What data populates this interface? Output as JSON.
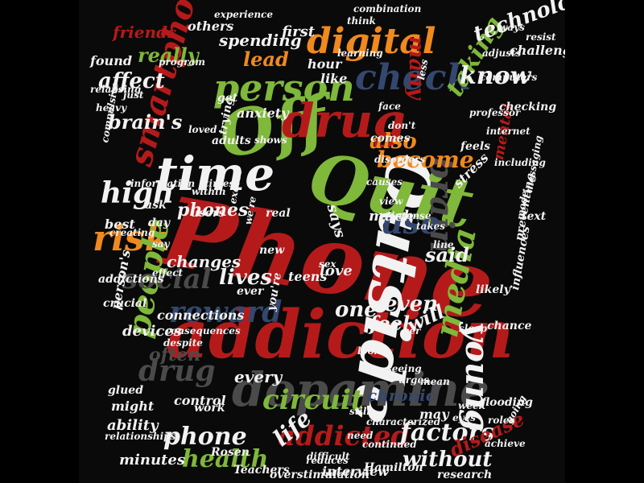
{
  "palette": {
    "red": "#b51a1a",
    "green": "#7fb83a",
    "white": "#f2f2f2",
    "grey": "#4a4a4a",
    "navy": "#34476e",
    "orange": "#f0891e",
    "dark": "#2a2a2a"
  },
  "words": [
    {
      "id": "phone-big",
      "text": "Phone",
      "color": "red"
    },
    {
      "id": "addiction",
      "text": "addiction",
      "color": "red"
    },
    {
      "id": "outside",
      "text": "Outside",
      "color": "white"
    },
    {
      "id": "quit",
      "text": "Quit",
      "color": "green"
    },
    {
      "id": "off",
      "text": "Off",
      "color": "green"
    },
    {
      "id": "dopamine",
      "text": "dopamine",
      "color": "grey"
    },
    {
      "id": "time",
      "text": "time",
      "color": "white"
    },
    {
      "id": "drug-top",
      "text": "drug",
      "color": "red"
    },
    {
      "id": "person",
      "text": "person",
      "color": "green"
    },
    {
      "id": "digital",
      "text": "digital",
      "color": "orange"
    },
    {
      "id": "check",
      "text": "check",
      "color": "navy"
    },
    {
      "id": "smartphone",
      "text": "smartphone",
      "color": "red"
    },
    {
      "id": "risk",
      "text": "risk",
      "color": "orange"
    },
    {
      "id": "high",
      "text": "high",
      "color": "white"
    },
    {
      "id": "people",
      "text": "people",
      "color": "green"
    },
    {
      "id": "young",
      "text": "young",
      "color": "white"
    },
    {
      "id": "media",
      "text": "media",
      "color": "green"
    },
    {
      "id": "brain",
      "text": "brain",
      "color": "grey"
    },
    {
      "id": "use",
      "text": "use",
      "color": "navy"
    },
    {
      "id": "reward",
      "text": "reward",
      "color": "navy"
    },
    {
      "id": "social",
      "text": "social",
      "color": "grey"
    },
    {
      "id": "circuit",
      "text": "circuit",
      "color": "green"
    },
    {
      "id": "addicted",
      "text": "addicted",
      "color": "red"
    },
    {
      "id": "factors",
      "text": "factors",
      "color": "white"
    },
    {
      "id": "phone-small",
      "text": "phone",
      "color": "white"
    },
    {
      "id": "health",
      "text": "health",
      "color": "green"
    },
    {
      "id": "lives",
      "text": "lives",
      "color": "white"
    },
    {
      "id": "one",
      "text": "one",
      "color": "white"
    },
    {
      "id": "even",
      "text": "even",
      "color": "white"
    },
    {
      "id": "feel",
      "text": "feel",
      "color": "white"
    },
    {
      "id": "will",
      "text": "will",
      "color": "white"
    },
    {
      "id": "also",
      "text": "also",
      "color": "orange"
    },
    {
      "id": "become",
      "text": "become",
      "color": "orange"
    },
    {
      "id": "taking",
      "text": "taking",
      "color": "green"
    },
    {
      "id": "know",
      "text": "know",
      "color": "white"
    },
    {
      "id": "technology",
      "text": "technology",
      "color": "white"
    },
    {
      "id": "many",
      "text": "many",
      "color": "red"
    },
    {
      "id": "lead",
      "text": "lead",
      "color": "orange"
    },
    {
      "id": "affect",
      "text": "affect",
      "color": "white"
    },
    {
      "id": "really",
      "text": "really",
      "color": "green"
    },
    {
      "id": "phones",
      "text": "phones",
      "color": "white"
    },
    {
      "id": "said",
      "text": "said",
      "color": "white"
    },
    {
      "id": "disease",
      "text": "disease",
      "color": "red"
    },
    {
      "id": "without",
      "text": "without",
      "color": "white"
    },
    {
      "id": "minutes",
      "text": "minutes",
      "color": "white"
    },
    {
      "id": "ability",
      "text": "ability",
      "color": "white"
    },
    {
      "id": "devices",
      "text": "devices",
      "color": "white"
    },
    {
      "id": "every",
      "text": "every",
      "color": "white"
    },
    {
      "id": "drug-mid",
      "text": "drug",
      "color": "grey"
    },
    {
      "id": "often",
      "text": "often",
      "color": "grey"
    },
    {
      "id": "changes",
      "text": "changes",
      "color": "white"
    },
    {
      "id": "love",
      "text": "love",
      "color": "white"
    },
    {
      "id": "chronic",
      "text": "chronic",
      "color": "navy"
    },
    {
      "id": "life",
      "text": "life",
      "color": "white"
    },
    {
      "id": "much",
      "text": "much",
      "color": "white"
    },
    {
      "id": "stress",
      "text": "stress",
      "color": "white"
    },
    {
      "id": "mental",
      "text": "mental",
      "color": "red"
    },
    {
      "id": "friends",
      "text": "friends",
      "color": "red"
    },
    {
      "id": "spending",
      "text": "spending",
      "color": "white"
    },
    {
      "id": "first",
      "text": "first",
      "color": "white"
    },
    {
      "id": "challenge",
      "text": "challenge",
      "color": "white"
    },
    {
      "id": "found",
      "text": "found",
      "color": "white"
    },
    {
      "id": "others",
      "text": "others",
      "color": "white"
    },
    {
      "id": "hour",
      "text": "hour",
      "color": "white"
    },
    {
      "id": "like",
      "text": "like",
      "color": "white"
    },
    {
      "id": "anxiety",
      "text": "anxiety",
      "color": "white"
    },
    {
      "id": "users",
      "text": "users",
      "color": "white"
    },
    {
      "id": "best",
      "text": "best",
      "color": "white"
    },
    {
      "id": "day",
      "text": "day",
      "color": "white"
    },
    {
      "id": "ask",
      "text": "ask",
      "color": "white"
    },
    {
      "id": "adults",
      "text": "adults",
      "color": "white"
    },
    {
      "id": "teens",
      "text": "teens",
      "color": "white"
    },
    {
      "id": "connections",
      "text": "connections",
      "color": "white"
    },
    {
      "id": "crucial",
      "text": "crucial",
      "color": "white"
    },
    {
      "id": "addictions",
      "text": "addictions",
      "color": "white"
    },
    {
      "id": "consequences",
      "text": "consequences",
      "color": "white"
    },
    {
      "id": "despite",
      "text": "despite",
      "color": "white"
    },
    {
      "id": "control",
      "text": "control",
      "color": "white"
    },
    {
      "id": "work",
      "text": "work",
      "color": "white"
    },
    {
      "id": "might",
      "text": "might",
      "color": "white"
    },
    {
      "id": "glued",
      "text": "glued",
      "color": "white"
    },
    {
      "id": "relationships",
      "text": "relationships",
      "color": "white"
    },
    {
      "id": "interview",
      "text": "interview",
      "color": "white"
    },
    {
      "id": "may",
      "text": "may",
      "color": "white"
    },
    {
      "id": "chance",
      "text": "chance",
      "color": "white"
    },
    {
      "id": "influences",
      "text": "influences",
      "color": "white"
    },
    {
      "id": "preventing",
      "text": "preventing",
      "color": "white"
    },
    {
      "id": "likely",
      "text": "likely",
      "color": "white"
    },
    {
      "id": "says",
      "text": "says",
      "color": "white"
    },
    {
      "id": "real",
      "text": "real",
      "color": "white"
    },
    {
      "id": "ever",
      "text": "ever",
      "color": "white"
    },
    {
      "id": "comes",
      "text": "comes",
      "color": "white"
    },
    {
      "id": "disorders",
      "text": "disorders",
      "color": "white"
    },
    {
      "id": "causes",
      "text": "causes",
      "color": "white"
    },
    {
      "id": "intense",
      "text": "intense",
      "color": "white"
    },
    {
      "id": "takes",
      "text": "takes",
      "color": "white"
    },
    {
      "id": "line",
      "text": "line",
      "color": "white"
    },
    {
      "id": "text",
      "text": "text",
      "color": "white"
    },
    {
      "id": "messaging",
      "text": "messaging",
      "color": "white"
    },
    {
      "id": "including",
      "text": "including",
      "color": "white"
    },
    {
      "id": "internet",
      "text": "internet",
      "color": "white"
    },
    {
      "id": "feels",
      "text": "feels",
      "color": "white"
    },
    {
      "id": "computers",
      "text": "computers",
      "color": "white"
    },
    {
      "id": "checking",
      "text": "checking",
      "color": "white"
    },
    {
      "id": "professor",
      "text": "professor",
      "color": "white"
    },
    {
      "id": "Rosen",
      "text": "Rosen",
      "color": "white"
    },
    {
      "id": "Teachers",
      "text": "Teachers",
      "color": "white"
    },
    {
      "id": "overstimulation",
      "text": "overstimulation",
      "color": "white"
    },
    {
      "id": "Hamilton",
      "text": "Hamilton",
      "color": "white"
    },
    {
      "id": "research",
      "text": "research",
      "color": "white"
    },
    {
      "id": "achieve",
      "text": "achieve",
      "color": "white"
    },
    {
      "id": "roles",
      "text": "roles",
      "color": "white"
    },
    {
      "id": "flooding",
      "text": "flooding",
      "color": "white"
    },
    {
      "id": "week",
      "text": "week",
      "color": "white"
    },
    {
      "id": "going",
      "text": "going",
      "color": "white"
    },
    {
      "id": "mean",
      "text": "mean",
      "color": "white"
    },
    {
      "id": "urges",
      "text": "urges",
      "color": "white"
    },
    {
      "id": "seeing",
      "text": "seeing",
      "color": "white"
    },
    {
      "id": "look",
      "text": "look",
      "color": "white"
    },
    {
      "id": "sleep",
      "text": "sleep",
      "color": "white"
    },
    {
      "id": "per",
      "text": "per",
      "color": "white"
    },
    {
      "id": "eyes",
      "text": "eyes",
      "color": "white"
    },
    {
      "id": "still",
      "text": "still",
      "color": "white"
    },
    {
      "id": "characterized",
      "text": "characterized",
      "color": "white"
    },
    {
      "id": "need",
      "text": "need",
      "color": "white"
    },
    {
      "id": "continued",
      "text": "continued",
      "color": "white"
    },
    {
      "id": "difficult",
      "text": "difficult",
      "color": "white"
    },
    {
      "id": "reduces",
      "text": "reduces",
      "color": "white"
    },
    {
      "id": "effect",
      "text": "effect",
      "color": "white"
    },
    {
      "id": "youre",
      "text": "you're",
      "color": "white"
    },
    {
      "id": "were",
      "text": "we're",
      "color": "white"
    },
    {
      "id": "new",
      "text": "new",
      "color": "white"
    },
    {
      "id": "sex",
      "text": "sex",
      "color": "white"
    },
    {
      "id": "trying",
      "text": "trying",
      "color": "white"
    },
    {
      "id": "within",
      "text": "within",
      "color": "white"
    },
    {
      "id": "times",
      "text": "times",
      "color": "white"
    },
    {
      "id": "excess",
      "text": "excess",
      "color": "white"
    },
    {
      "id": "view",
      "text": "view",
      "color": "white"
    },
    {
      "id": "loved",
      "text": "loved",
      "color": "white"
    },
    {
      "id": "compulsive",
      "text": "compulsive",
      "color": "white"
    },
    {
      "id": "heavy",
      "text": "heavy",
      "color": "white"
    },
    {
      "id": "relapsing",
      "text": "relapsing",
      "color": "white"
    },
    {
      "id": "just",
      "text": "just",
      "color": "white"
    },
    {
      "id": "program",
      "text": "program",
      "color": "white"
    },
    {
      "id": "face",
      "text": "face",
      "color": "white"
    },
    {
      "id": "less",
      "text": "less",
      "color": "white"
    },
    {
      "id": "dont",
      "text": "don't",
      "color": "white"
    },
    {
      "id": "think",
      "text": "think",
      "color": "white"
    },
    {
      "id": "combination",
      "text": "combination",
      "color": "white"
    },
    {
      "id": "experience",
      "text": "experience",
      "color": "white"
    },
    {
      "id": "ways",
      "text": "ways",
      "color": "white"
    },
    {
      "id": "resist",
      "text": "resist",
      "color": "white"
    },
    {
      "id": "adjusts",
      "text": "adjusts",
      "color": "white"
    },
    {
      "id": "learning",
      "text": "learning",
      "color": "white"
    },
    {
      "id": "shows",
      "text": "shows",
      "color": "white"
    },
    {
      "id": "say",
      "text": "say",
      "color": "white"
    },
    {
      "id": "brains",
      "text": "brain's",
      "color": "white"
    },
    {
      "id": "persons",
      "text": "person's",
      "color": "white"
    },
    {
      "id": "creating",
      "text": "creating",
      "color": "white"
    },
    {
      "id": "information",
      "text": "information",
      "color": "white"
    },
    {
      "id": "get",
      "text": "get",
      "color": "white"
    },
    {
      "id": "mode",
      "text": "mode",
      "color": "white"
    }
  ]
}
